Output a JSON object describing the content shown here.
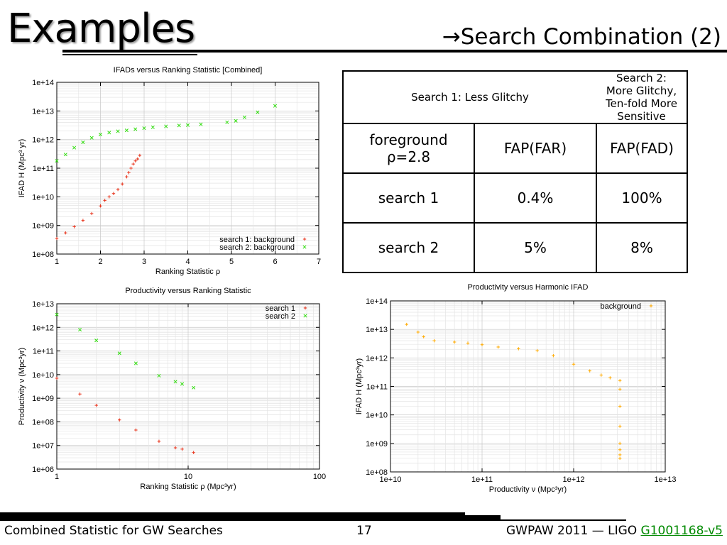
{
  "slide": {
    "title": "Examples",
    "subtitle": "→Search Combination (2)"
  },
  "table": {
    "header": [
      "Search 1: Less Glitchy",
      "Search 2: More Glitchy, Ten-fold More Sensitive"
    ],
    "rows": [
      [
        "foreground ρ=2.8",
        "FAP(FAR)",
        "FAP(FAD)"
      ],
      [
        "search 1",
        "0.4%",
        "100%"
      ],
      [
        "search 2",
        "5%",
        "8%"
      ]
    ]
  },
  "footer": {
    "left": "Combined Statistic for GW Searches",
    "page": "17",
    "right_prefix": "GWPAW 2011 — LIGO ",
    "right_link": "G1001168-v5"
  },
  "colors": {
    "red": "#e8321a",
    "green": "#33dd11",
    "orange": "#ffaa00"
  },
  "chart_data": [
    {
      "type": "scatter",
      "title": "IFADs versus Ranking Statistic [Combined]",
      "xlabel": "Ranking Statistic ρ",
      "ylabel": "IFAD H (Mpc³ yr)",
      "xlim": [
        1,
        7
      ],
      "ylim": [
        100000000.0,
        100000000000000.0
      ],
      "xscale": "linear",
      "yscale": "log",
      "xticks": [
        "1",
        "2",
        "3",
        "4",
        "5",
        "6",
        "7"
      ],
      "yticks": [
        "1e+08",
        "1e+09",
        "1e+10",
        "1e+11",
        "1e+12",
        "1e+13",
        "1e+14"
      ],
      "grid": true,
      "legend": "bottom-right",
      "series": [
        {
          "name": "search 1: background",
          "marker": "+",
          "color": "#e8321a",
          "x": [
            1.0,
            1.2,
            1.4,
            1.6,
            1.8,
            2.0,
            2.1,
            2.2,
            2.3,
            2.4,
            2.5,
            2.6,
            2.65,
            2.7,
            2.75,
            2.8,
            2.85,
            2.9
          ],
          "y": [
            350000000.0,
            550000000.0,
            900000000.0,
            1500000000.0,
            2600000000.0,
            4800000000.0,
            7500000000.0,
            10000000000.0,
            13000000000.0,
            18000000000.0,
            28000000000.0,
            50000000000.0,
            70000000000.0,
            100000000000.0,
            140000000000.0,
            180000000000.0,
            210000000000.0,
            280000000000.0
          ]
        },
        {
          "name": "search 2: background",
          "marker": "x",
          "color": "#33dd11",
          "x": [
            1.0,
            1.2,
            1.4,
            1.6,
            1.8,
            2.0,
            2.2,
            2.4,
            2.6,
            2.8,
            3.0,
            3.2,
            3.5,
            3.8,
            4.0,
            4.3,
            4.9,
            5.1,
            5.3,
            5.6,
            6.0
          ],
          "y": [
            180000000000.0,
            300000000000.0,
            520000000000.0,
            800000000000.0,
            1150000000000.0,
            1500000000000.0,
            1750000000000.0,
            1950000000000.0,
            2100000000000.0,
            2300000000000.0,
            2500000000000.0,
            2700000000000.0,
            2900000000000.0,
            3100000000000.0,
            3200000000000.0,
            3400000000000.0,
            4000000000000.0,
            4500000000000.0,
            6000000000000.0,
            9000000000000.0,
            15000000000000.0
          ]
        }
      ]
    },
    {
      "type": "scatter",
      "title": "Productivity versus Ranking Statistic",
      "xlabel": "Ranking Statistic ρ (Mpc³yr)",
      "ylabel": "Productivity ν (Mpc³yr)",
      "xlim": [
        1,
        100
      ],
      "ylim": [
        1000000.0,
        10000000000000.0
      ],
      "xscale": "log",
      "yscale": "log",
      "xticks": [
        "1",
        "10",
        "100"
      ],
      "yticks": [
        "1e+06",
        "1e+07",
        "1e+08",
        "1e+09",
        "1e+10",
        "1e+11",
        "1e+12",
        "1e+13"
      ],
      "grid": true,
      "legend": "top-right",
      "series": [
        {
          "name": "search 1",
          "marker": "+",
          "color": "#e8321a",
          "x": [
            1.0,
            1.5,
            2.0,
            3.0,
            4.0,
            6.0,
            8.0,
            9.0,
            11.0
          ],
          "y": [
            7000000000.0,
            1500000000.0,
            500000000.0,
            120000000.0,
            45000000.0,
            15000000.0,
            8000000.0,
            7000000.0,
            5000000.0
          ]
        },
        {
          "name": "search 2",
          "marker": "x",
          "color": "#33dd11",
          "x": [
            1.0,
            1.5,
            2.0,
            3.0,
            4.0,
            6.0,
            8.0,
            9.0,
            11.0
          ],
          "y": [
            3500000000000.0,
            800000000000.0,
            280000000000.0,
            80000000000.0,
            30000000000.0,
            9000000000.0,
            5000000000.0,
            4000000000.0,
            2800000000.0
          ]
        }
      ]
    },
    {
      "type": "scatter",
      "title": "Productivity versus Harmonic IFAD",
      "xlabel": "Productivity ν (Mpc³yr)",
      "ylabel": "IFAD H (Mpc³yr)",
      "xlim": [
        10000000000.0,
        10000000000000.0
      ],
      "ylim": [
        100000000.0,
        100000000000000.0
      ],
      "xscale": "log",
      "yscale": "log",
      "xticks": [
        "1e+10",
        "1e+11",
        "1e+12",
        "1e+13"
      ],
      "yticks": [
        "1e+08",
        "1e+09",
        "1e+10",
        "1e+11",
        "1e+12",
        "1e+13",
        "1e+14"
      ],
      "grid": true,
      "legend": "top-right",
      "series": [
        {
          "name": "background",
          "marker": "+",
          "color": "#ffaa00",
          "x": [
            15000000000.0,
            20000000000.0,
            23000000000.0,
            30000000000.0,
            50000000000.0,
            70000000000.0,
            100000000000.0,
            150000000000.0,
            250000000000.0,
            400000000000.0,
            600000000000.0,
            1000000000000.0,
            1500000000000.0,
            2000000000000.0,
            2500000000000.0,
            3200000000000.0,
            3200000000000.0,
            3200000000000.0,
            3200000000000.0,
            3200000000000.0,
            3200000000000.0,
            3200000000000.0,
            3200000000000.0
          ],
          "y": [
            15000000000000.0,
            8000000000000.0,
            5500000000000.0,
            4000000000000.0,
            3600000000000.0,
            3300000000000.0,
            2900000000000.0,
            2400000000000.0,
            2100000000000.0,
            1800000000000.0,
            1200000000000.0,
            600000000000.0,
            350000000000.0,
            250000000000.0,
            200000000000.0,
            160000000000.0,
            80000000000.0,
            20000000000.0,
            4000000000.0,
            1000000000.0,
            600000000.0,
            400000000.0,
            300000000.0
          ]
        }
      ]
    }
  ]
}
